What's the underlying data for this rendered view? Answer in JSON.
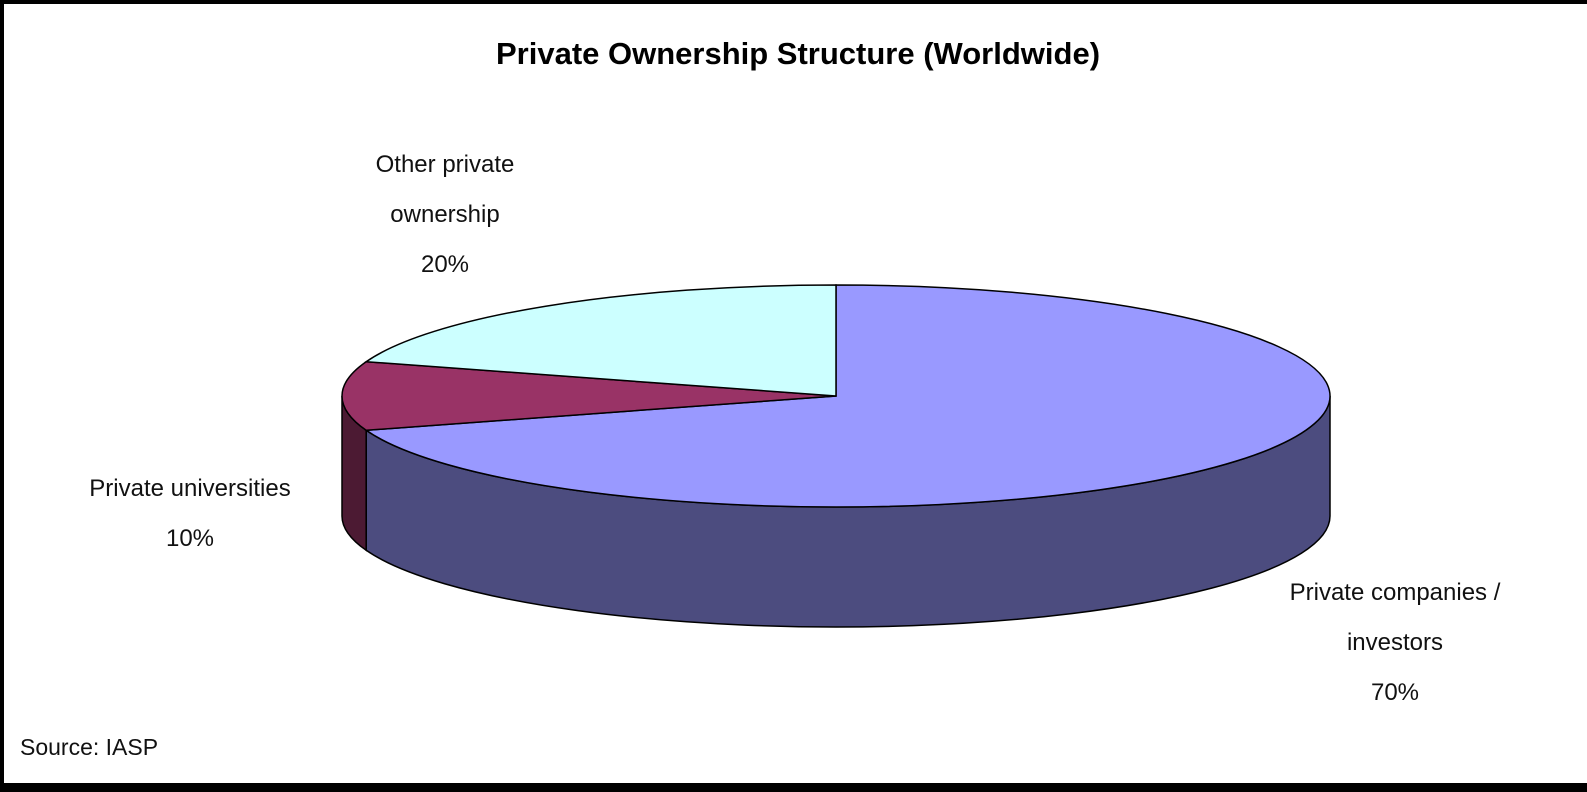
{
  "chart_data": {
    "type": "pie",
    "style": "3d",
    "title": "Private Ownership Structure (Worldwide)",
    "slices": [
      {
        "label_lines": [
          "Private companies /",
          "investors"
        ],
        "value": 70,
        "value_label": "70%",
        "top_color": "#9999ff",
        "side_color": "#4c4c7f"
      },
      {
        "label_lines": [
          "Private universities"
        ],
        "value": 10,
        "value_label": "10%",
        "top_color": "#993366",
        "side_color": "#4c1a33"
      },
      {
        "label_lines": [
          "Other private",
          "ownership"
        ],
        "value": 20,
        "value_label": "20%",
        "top_color": "#ccffff",
        "side_color": "#667f7f"
      }
    ]
  },
  "source": "Source: IASP"
}
